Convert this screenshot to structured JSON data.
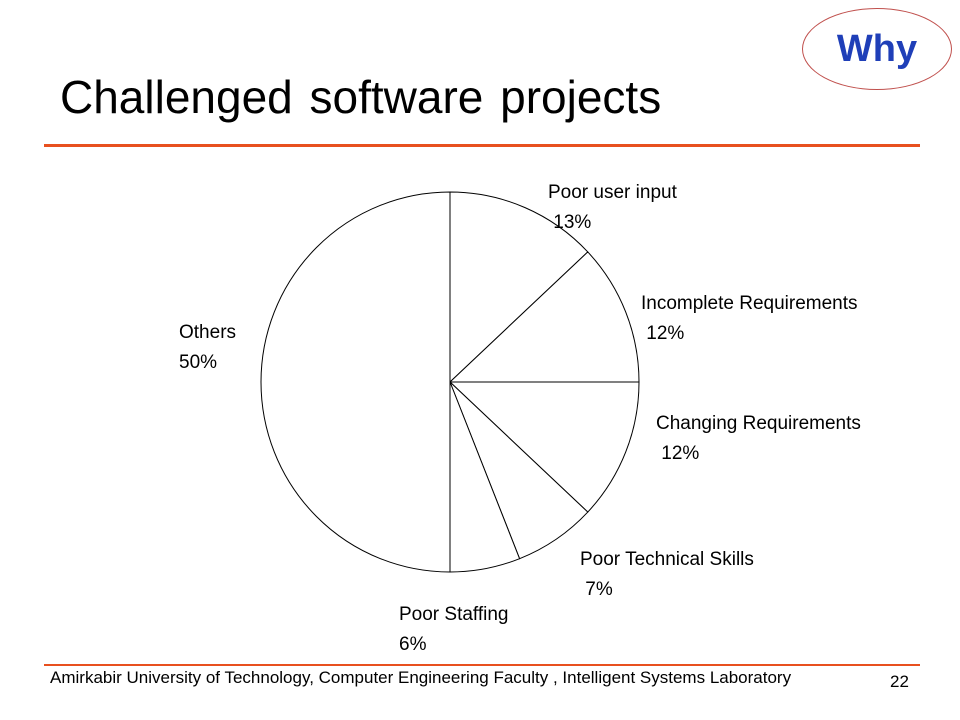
{
  "slide": {
    "badge": "Why",
    "title": "Challenged software projects",
    "footer": "Amirkabir University of Technology, Computer Engineering Faculty , Intelligent Systems Laboratory",
    "page_number": "22",
    "accent_color": "#e8501f",
    "badge_color": "#1f3fb8"
  },
  "chart_data": {
    "type": "pie",
    "title": "",
    "start": "12 o'clock",
    "direction": "clockwise",
    "slices": [
      {
        "label": "Poor user input",
        "value": 13,
        "value_label": "13%"
      },
      {
        "label": "Incomplete Requirements",
        "value": 12,
        "value_label": "12%"
      },
      {
        "label": "Changing Requirements",
        "value": 12,
        "value_label": "12%"
      },
      {
        "label": "Poor Technical Skills",
        "value": 7,
        "value_label": "7%"
      },
      {
        "label": "Poor Staffing",
        "value": 6,
        "value_label": "6%"
      },
      {
        "label": "Others",
        "value": 50,
        "value_label": "50%"
      }
    ]
  }
}
